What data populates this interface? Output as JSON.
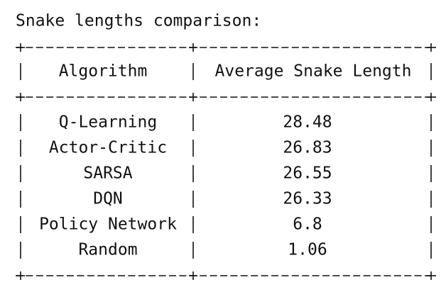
{
  "title": "Snake lengths comparison:",
  "table": {
    "header": [
      "Algorithm",
      "Average Snake Length"
    ],
    "rows": [
      [
        "Q-Learning",
        "28.48"
      ],
      [
        "Actor-Critic",
        "26.83"
      ],
      [
        "SARSA",
        "26.55"
      ],
      [
        "DQN",
        "26.33"
      ],
      [
        "Policy Network",
        "6.8"
      ],
      [
        "Random",
        "1.06"
      ]
    ]
  }
}
